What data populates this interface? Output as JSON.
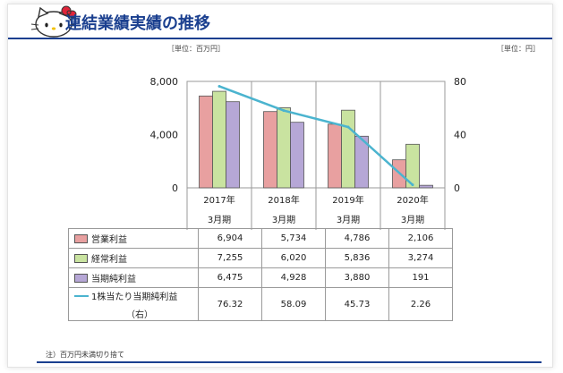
{
  "title": "連結業績実績の推移",
  "unit_left": "［単位：百万円］",
  "unit_right": "［単位：円］",
  "note": "注）百万円未満切り捨て",
  "colors": {
    "title": "#1a3f8f",
    "operating": "#e8a0a0",
    "ordinary": "#c9e3a0",
    "net": "#b6a7d6",
    "eps": "#4bb4cf"
  },
  "chart_data": {
    "type": "bar",
    "categories": [
      "2017年\n3月期",
      "2018年\n3月期",
      "2019年\n3月期",
      "2020年\n3月期"
    ],
    "category_labels": [
      [
        "2017年",
        "3月期"
      ],
      [
        "2018年",
        "3月期"
      ],
      [
        "2019年",
        "3月期"
      ],
      [
        "2020年",
        "3月期"
      ]
    ],
    "left_axis": {
      "ticks": [
        "8,000",
        "4,000",
        "0"
      ],
      "range": [
        0,
        8000
      ],
      "tick_values": [
        8000,
        4000,
        0
      ]
    },
    "right_axis": {
      "ticks": [
        "80",
        "40",
        "0"
      ],
      "range": [
        0,
        80
      ],
      "tick_values": [
        80,
        40,
        0
      ]
    },
    "series": [
      {
        "name": "営業利益",
        "type": "bar",
        "axis": "left",
        "values": [
          6904,
          5734,
          4786,
          2106
        ],
        "labels": [
          "6,904",
          "5,734",
          "4,786",
          "2,106"
        ]
      },
      {
        "name": "経常利益",
        "type": "bar",
        "axis": "left",
        "values": [
          7255,
          6020,
          5836,
          3274
        ],
        "labels": [
          "7,255",
          "6,020",
          "5,836",
          "3,274"
        ]
      },
      {
        "name": "当期純利益",
        "type": "bar",
        "axis": "left",
        "values": [
          6475,
          4928,
          3880,
          191
        ],
        "labels": [
          "6,475",
          "4,928",
          "3,880",
          "191"
        ]
      },
      {
        "name": "1株当たり当期純利益",
        "name_suffix": "（右）",
        "type": "line",
        "axis": "right",
        "values": [
          76.32,
          58.09,
          45.73,
          2.26
        ],
        "labels": [
          "76.32",
          "58.09",
          "45.73",
          "2.26"
        ]
      }
    ],
    "grid": "vertical category dividers",
    "legend": "table rows below chart"
  }
}
